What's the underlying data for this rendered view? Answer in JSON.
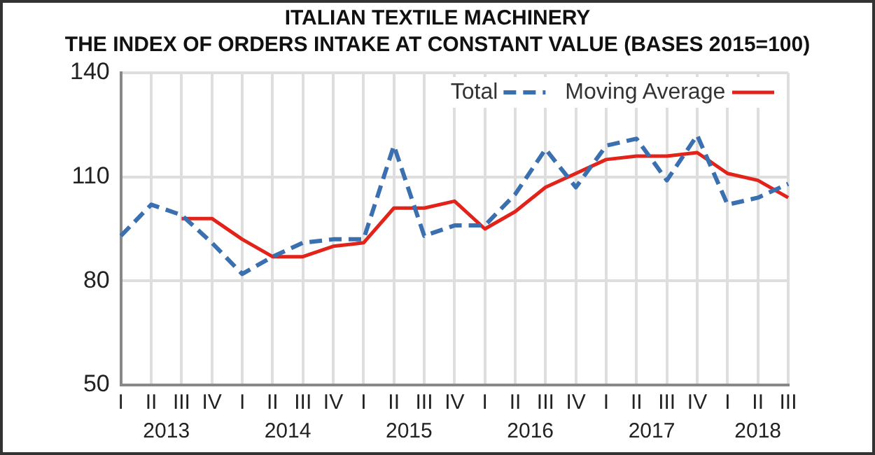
{
  "chart_data": {
    "type": "line",
    "title": [
      "ITALIAN TEXTILE MACHINERY",
      "THE INDEX OF ORDERS INTAKE AT CONSTANT VALUE (BASES 2015=100)"
    ],
    "categories": [
      "I",
      "II",
      "III",
      "IV",
      "I",
      "II",
      "III",
      "IV",
      "I",
      "II",
      "III",
      "IV",
      "I",
      "II",
      "III",
      "IV",
      "I",
      "II",
      "III",
      "IV",
      "I",
      "II",
      "III"
    ],
    "series": [
      {
        "name": "Total",
        "color": "#3a6fb0",
        "line_style": "dashed",
        "values": [
          93,
          102,
          99,
          91,
          82,
          87,
          91,
          92,
          92,
          119,
          93,
          96,
          96,
          105,
          118,
          107,
          119,
          121,
          109,
          122,
          102,
          104,
          108
        ]
      },
      {
        "name": "Moving Average",
        "color": "#e2231a",
        "line_style": "solid",
        "values": [
          null,
          null,
          98,
          98,
          92,
          87,
          87,
          90,
          91,
          101,
          101,
          103,
          95,
          100,
          107,
          111,
          115,
          116,
          116,
          117,
          111,
          109,
          104
        ]
      }
    ],
    "annotations": [
      "2013",
      "2014",
      "2015",
      "2016",
      "2017",
      "2018"
    ],
    "ylim": [
      50,
      140
    ],
    "yticks": [
      50,
      80,
      110,
      140
    ],
    "grid": true,
    "legend": "top right",
    "marker": "none"
  }
}
